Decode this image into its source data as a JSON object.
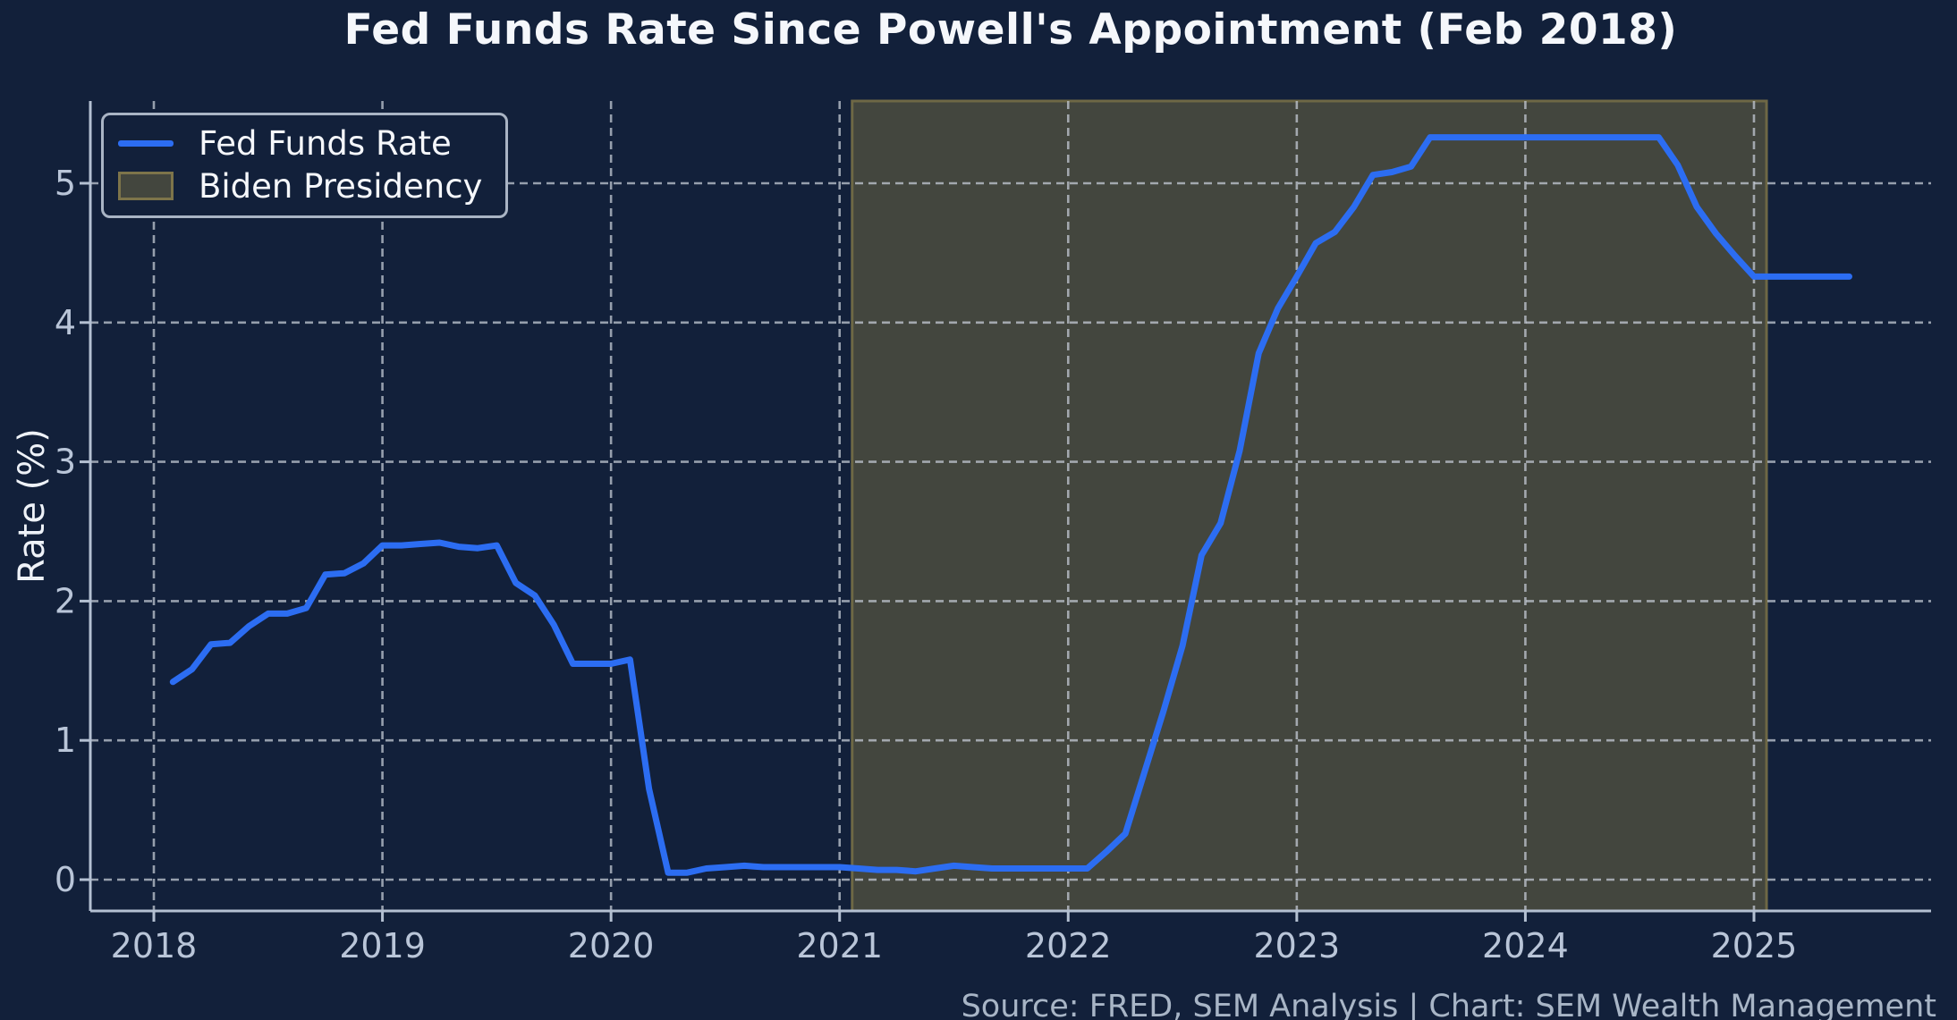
{
  "header": {
    "title": "Fed Funds Rate Since Powell's Appointment (Feb 2018)"
  },
  "footer": {
    "source": "Source: FRED, SEM Analysis | Chart: SEM Wealth Management"
  },
  "chart_data": {
    "type": "line",
    "title": "Fed Funds Rate Since Powell's Appointment (Feb 2018)",
    "xlabel": "",
    "ylabel": "Rate (%)",
    "x_ticks": [
      2018,
      2019,
      2020,
      2021,
      2022,
      2023,
      2024,
      2025
    ],
    "y_ticks": [
      0,
      1,
      2,
      3,
      4,
      5
    ],
    "xlim": [
      2017.72,
      2025.78
    ],
    "ylim": [
      -0.22,
      5.59
    ],
    "grid": "dashed",
    "legend_position": "upper-left",
    "series": [
      {
        "name": "Fed Funds Rate",
        "color": "#2c6df2",
        "start_year": 2018,
        "start_month": 2,
        "monthly_values": [
          1.42,
          1.51,
          1.69,
          1.7,
          1.82,
          1.91,
          1.91,
          1.95,
          2.19,
          2.2,
          2.27,
          2.4,
          2.4,
          2.41,
          2.42,
          2.39,
          2.38,
          2.4,
          2.13,
          2.04,
          1.83,
          1.55,
          1.55,
          1.55,
          1.58,
          0.65,
          0.05,
          0.05,
          0.08,
          0.09,
          0.1,
          0.09,
          0.09,
          0.09,
          0.09,
          0.09,
          0.08,
          0.07,
          0.07,
          0.06,
          0.08,
          0.1,
          0.09,
          0.08,
          0.08,
          0.08,
          0.08,
          0.08,
          0.08,
          0.2,
          0.33,
          0.77,
          1.21,
          1.68,
          2.33,
          2.56,
          3.08,
          3.78,
          4.1,
          4.33,
          4.57,
          4.65,
          4.83,
          5.06,
          5.08,
          5.12,
          5.33,
          5.33,
          5.33,
          5.33,
          5.33,
          5.33,
          5.33,
          5.33,
          5.33,
          5.33,
          5.33,
          5.33,
          5.33,
          5.13,
          4.83,
          4.64,
          4.48,
          4.33,
          4.33,
          4.33,
          4.33,
          4.33,
          4.33
        ]
      }
    ],
    "shaded_region": {
      "label": "Biden Presidency",
      "start": 2021.055,
      "end": 2025.055,
      "fill": "#43463e",
      "edge": "#6e6845",
      "legend_edge": "#7d744a"
    },
    "colors": {
      "background": "#12203a",
      "line_blue": "#2c6df2",
      "grid": "#c3cad4",
      "spine": "#b4c0d2",
      "tick_label": "#b9c5d8",
      "title_text": "#f5f7fb",
      "source_text": "#a8b5c6"
    }
  }
}
